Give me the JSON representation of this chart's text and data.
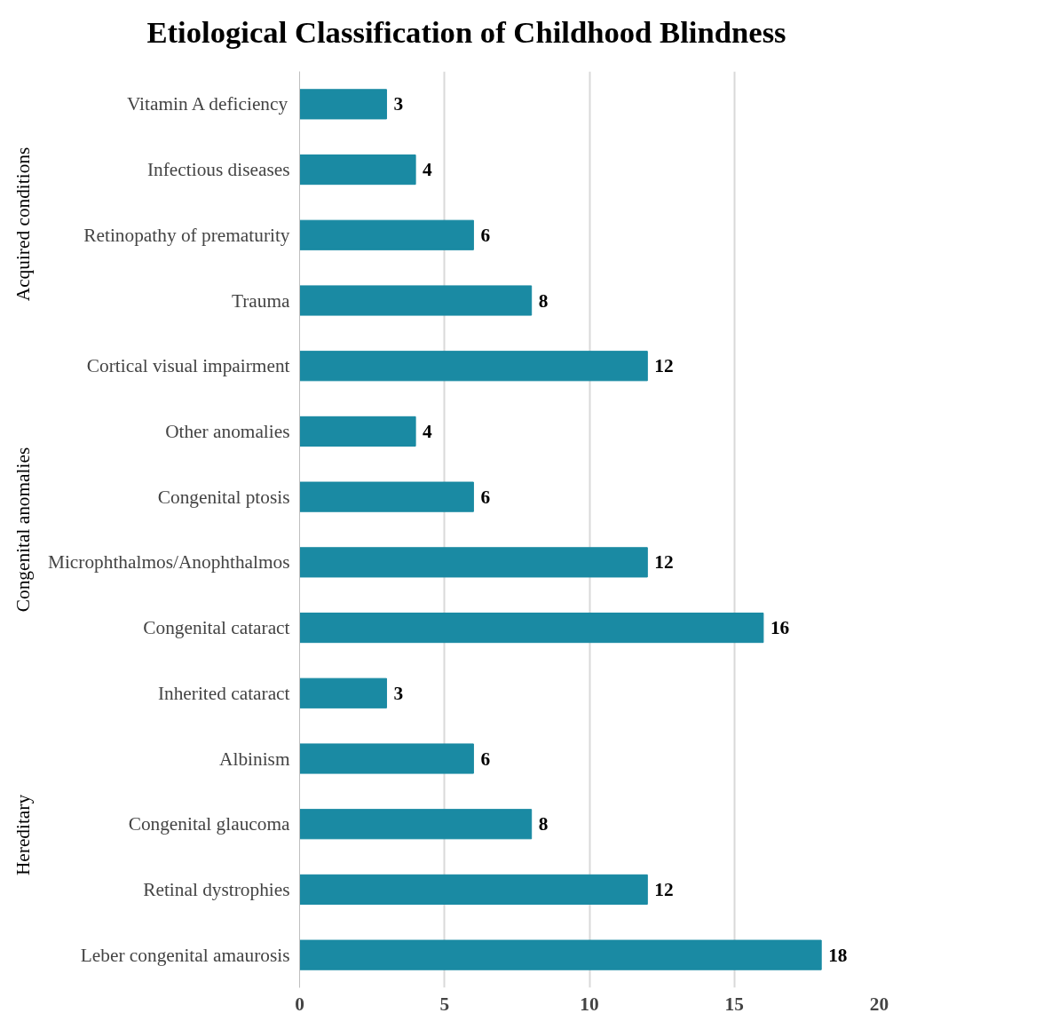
{
  "chart_data": {
    "type": "bar",
    "orientation": "horizontal",
    "title": "Etiological Classification of Childhood Blindness",
    "categories": [
      "Vitamin A deficiency",
      "Infectious diseases",
      "Retinopathy of prematurity",
      "Trauma",
      "Cortical visual impairment",
      "Other anomalies",
      "Congenital ptosis",
      "Microphthalmos/Anophthalmos",
      "Congenital cataract",
      "Inherited cataract",
      "Albinism",
      "Congenital glaucoma",
      "Retinal dystrophies",
      "Leber congenital amaurosis"
    ],
    "values": [
      3,
      4,
      6,
      8,
      12,
      4,
      6,
      12,
      16,
      3,
      6,
      8,
      12,
      18
    ],
    "color": "#1a8aa3",
    "xlim": [
      0,
      20
    ],
    "xticks": [
      0,
      5,
      10,
      15,
      20
    ],
    "grid": "x",
    "data_labels": true,
    "annotations": [
      "Acquired conditions",
      "Congenital anomalies",
      "Hereditary"
    ]
  }
}
